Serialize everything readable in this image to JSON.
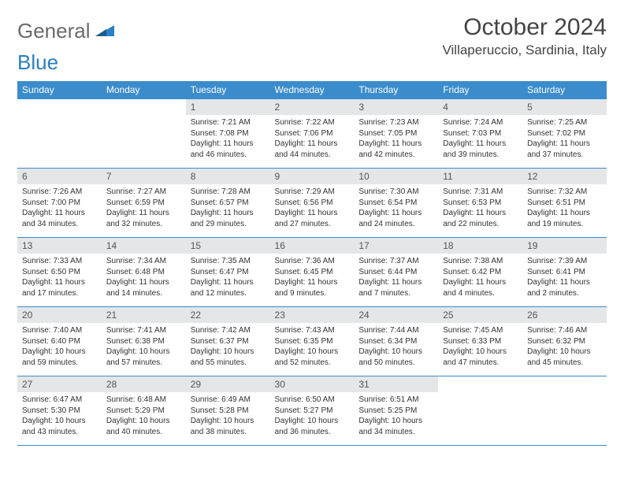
{
  "logo": {
    "general": "General",
    "blue": "Blue"
  },
  "title": "October 2024",
  "location": "Villaperuccio, Sardinia, Italy",
  "colors": {
    "header_bg": "#3b8ccc",
    "header_text": "#ffffff",
    "daynum_bg": "#e4e6e8",
    "border": "#3b8ccc",
    "logo_gray": "#6a6a6a",
    "logo_blue": "#2b7fc4"
  },
  "weekdays": [
    "Sunday",
    "Monday",
    "Tuesday",
    "Wednesday",
    "Thursday",
    "Friday",
    "Saturday"
  ],
  "weeks": [
    [
      {
        "blank": true
      },
      {
        "blank": true
      },
      {
        "num": "1",
        "sunrise": "Sunrise: 7:21 AM",
        "sunset": "Sunset: 7:08 PM",
        "daylight": "Daylight: 11 hours and 46 minutes."
      },
      {
        "num": "2",
        "sunrise": "Sunrise: 7:22 AM",
        "sunset": "Sunset: 7:06 PM",
        "daylight": "Daylight: 11 hours and 44 minutes."
      },
      {
        "num": "3",
        "sunrise": "Sunrise: 7:23 AM",
        "sunset": "Sunset: 7:05 PM",
        "daylight": "Daylight: 11 hours and 42 minutes."
      },
      {
        "num": "4",
        "sunrise": "Sunrise: 7:24 AM",
        "sunset": "Sunset: 7:03 PM",
        "daylight": "Daylight: 11 hours and 39 minutes."
      },
      {
        "num": "5",
        "sunrise": "Sunrise: 7:25 AM",
        "sunset": "Sunset: 7:02 PM",
        "daylight": "Daylight: 11 hours and 37 minutes."
      }
    ],
    [
      {
        "num": "6",
        "sunrise": "Sunrise: 7:26 AM",
        "sunset": "Sunset: 7:00 PM",
        "daylight": "Daylight: 11 hours and 34 minutes."
      },
      {
        "num": "7",
        "sunrise": "Sunrise: 7:27 AM",
        "sunset": "Sunset: 6:59 PM",
        "daylight": "Daylight: 11 hours and 32 minutes."
      },
      {
        "num": "8",
        "sunrise": "Sunrise: 7:28 AM",
        "sunset": "Sunset: 6:57 PM",
        "daylight": "Daylight: 11 hours and 29 minutes."
      },
      {
        "num": "9",
        "sunrise": "Sunrise: 7:29 AM",
        "sunset": "Sunset: 6:56 PM",
        "daylight": "Daylight: 11 hours and 27 minutes."
      },
      {
        "num": "10",
        "sunrise": "Sunrise: 7:30 AM",
        "sunset": "Sunset: 6:54 PM",
        "daylight": "Daylight: 11 hours and 24 minutes."
      },
      {
        "num": "11",
        "sunrise": "Sunrise: 7:31 AM",
        "sunset": "Sunset: 6:53 PM",
        "daylight": "Daylight: 11 hours and 22 minutes."
      },
      {
        "num": "12",
        "sunrise": "Sunrise: 7:32 AM",
        "sunset": "Sunset: 6:51 PM",
        "daylight": "Daylight: 11 hours and 19 minutes."
      }
    ],
    [
      {
        "num": "13",
        "sunrise": "Sunrise: 7:33 AM",
        "sunset": "Sunset: 6:50 PM",
        "daylight": "Daylight: 11 hours and 17 minutes."
      },
      {
        "num": "14",
        "sunrise": "Sunrise: 7:34 AM",
        "sunset": "Sunset: 6:48 PM",
        "daylight": "Daylight: 11 hours and 14 minutes."
      },
      {
        "num": "15",
        "sunrise": "Sunrise: 7:35 AM",
        "sunset": "Sunset: 6:47 PM",
        "daylight": "Daylight: 11 hours and 12 minutes."
      },
      {
        "num": "16",
        "sunrise": "Sunrise: 7:36 AM",
        "sunset": "Sunset: 6:45 PM",
        "daylight": "Daylight: 11 hours and 9 minutes."
      },
      {
        "num": "17",
        "sunrise": "Sunrise: 7:37 AM",
        "sunset": "Sunset: 6:44 PM",
        "daylight": "Daylight: 11 hours and 7 minutes."
      },
      {
        "num": "18",
        "sunrise": "Sunrise: 7:38 AM",
        "sunset": "Sunset: 6:42 PM",
        "daylight": "Daylight: 11 hours and 4 minutes."
      },
      {
        "num": "19",
        "sunrise": "Sunrise: 7:39 AM",
        "sunset": "Sunset: 6:41 PM",
        "daylight": "Daylight: 11 hours and 2 minutes."
      }
    ],
    [
      {
        "num": "20",
        "sunrise": "Sunrise: 7:40 AM",
        "sunset": "Sunset: 6:40 PM",
        "daylight": "Daylight: 10 hours and 59 minutes."
      },
      {
        "num": "21",
        "sunrise": "Sunrise: 7:41 AM",
        "sunset": "Sunset: 6:38 PM",
        "daylight": "Daylight: 10 hours and 57 minutes."
      },
      {
        "num": "22",
        "sunrise": "Sunrise: 7:42 AM",
        "sunset": "Sunset: 6:37 PM",
        "daylight": "Daylight: 10 hours and 55 minutes."
      },
      {
        "num": "23",
        "sunrise": "Sunrise: 7:43 AM",
        "sunset": "Sunset: 6:35 PM",
        "daylight": "Daylight: 10 hours and 52 minutes."
      },
      {
        "num": "24",
        "sunrise": "Sunrise: 7:44 AM",
        "sunset": "Sunset: 6:34 PM",
        "daylight": "Daylight: 10 hours and 50 minutes."
      },
      {
        "num": "25",
        "sunrise": "Sunrise: 7:45 AM",
        "sunset": "Sunset: 6:33 PM",
        "daylight": "Daylight: 10 hours and 47 minutes."
      },
      {
        "num": "26",
        "sunrise": "Sunrise: 7:46 AM",
        "sunset": "Sunset: 6:32 PM",
        "daylight": "Daylight: 10 hours and 45 minutes."
      }
    ],
    [
      {
        "num": "27",
        "sunrise": "Sunrise: 6:47 AM",
        "sunset": "Sunset: 5:30 PM",
        "daylight": "Daylight: 10 hours and 43 minutes."
      },
      {
        "num": "28",
        "sunrise": "Sunrise: 6:48 AM",
        "sunset": "Sunset: 5:29 PM",
        "daylight": "Daylight: 10 hours and 40 minutes."
      },
      {
        "num": "29",
        "sunrise": "Sunrise: 6:49 AM",
        "sunset": "Sunset: 5:28 PM",
        "daylight": "Daylight: 10 hours and 38 minutes."
      },
      {
        "num": "30",
        "sunrise": "Sunrise: 6:50 AM",
        "sunset": "Sunset: 5:27 PM",
        "daylight": "Daylight: 10 hours and 36 minutes."
      },
      {
        "num": "31",
        "sunrise": "Sunrise: 6:51 AM",
        "sunset": "Sunset: 5:25 PM",
        "daylight": "Daylight: 10 hours and 34 minutes."
      },
      {
        "blank": true
      },
      {
        "blank": true
      }
    ]
  ]
}
